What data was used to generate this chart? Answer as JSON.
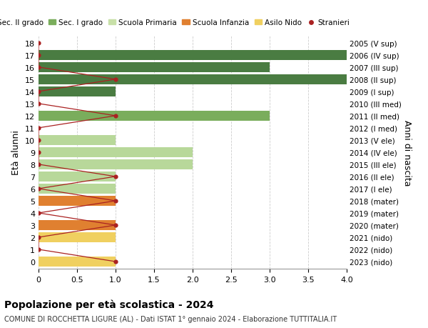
{
  "ages": [
    18,
    17,
    16,
    15,
    14,
    13,
    12,
    11,
    10,
    9,
    8,
    7,
    6,
    5,
    4,
    3,
    2,
    1,
    0
  ],
  "right_labels": [
    "2005 (V sup)",
    "2006 (IV sup)",
    "2007 (III sup)",
    "2008 (II sup)",
    "2009 (I sup)",
    "2010 (III med)",
    "2011 (II med)",
    "2012 (I med)",
    "2013 (V ele)",
    "2014 (IV ele)",
    "2015 (III ele)",
    "2016 (II ele)",
    "2017 (I ele)",
    "2018 (mater)",
    "2019 (mater)",
    "2020 (mater)",
    "2021 (nido)",
    "2022 (nido)",
    "2023 (nido)"
  ],
  "bar_values": [
    0,
    4,
    3,
    4,
    1,
    0,
    3,
    0,
    1,
    2,
    2,
    1,
    1,
    1,
    0,
    1,
    1,
    0,
    1
  ],
  "bar_colors": [
    "#4a7c42",
    "#4a7c42",
    "#4a7c42",
    "#4a7c42",
    "#4a7c42",
    "#7aad5c",
    "#7aad5c",
    "#7aad5c",
    "#b8d89a",
    "#b8d89a",
    "#b8d89a",
    "#b8d89a",
    "#b8d89a",
    "#e08030",
    "#e08030",
    "#e08030",
    "#f0d060",
    "#f0d060",
    "#f0d060"
  ],
  "stranieri_values": [
    0,
    0,
    0,
    1,
    0,
    0,
    1,
    0,
    0,
    0,
    0,
    1,
    0,
    1,
    0,
    1,
    0,
    0,
    1
  ],
  "title": "Popolazione per età scolastica - 2024",
  "subtitle": "COMUNE DI ROCCHETTA LIGURE (AL) - Dati ISTAT 1° gennaio 2024 - Elaborazione TUTTITALIA.IT",
  "ylabel": "Età alunni",
  "right_ylabel": "Anni di nascita",
  "xlim": [
    0,
    4.0
  ],
  "legend_labels": [
    "Sec. II grado",
    "Sec. I grado",
    "Scuola Primaria",
    "Scuola Infanzia",
    "Asilo Nido",
    "Stranieri"
  ],
  "legend_colors": [
    "#4a7c42",
    "#7aad5c",
    "#c8e0a8",
    "#e08030",
    "#f0d060",
    "#cc2222"
  ],
  "color_stranieri": "#aa2222",
  "bg_color": "#ffffff",
  "grid_color": "#cccccc"
}
